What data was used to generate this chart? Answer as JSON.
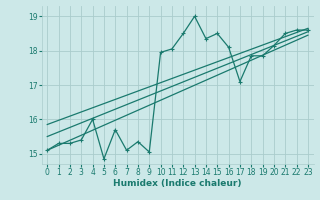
{
  "xlabel": "Humidex (Indice chaleur)",
  "x_data": [
    0,
    1,
    2,
    3,
    4,
    5,
    6,
    7,
    8,
    9,
    10,
    11,
    12,
    13,
    14,
    15,
    16,
    17,
    18,
    19,
    20,
    21,
    22,
    23
  ],
  "main_y": [
    15.1,
    15.3,
    15.3,
    15.4,
    16.0,
    14.85,
    15.7,
    15.1,
    15.35,
    15.05,
    17.95,
    18.05,
    18.5,
    19.0,
    18.35,
    18.5,
    18.1,
    17.1,
    17.85,
    17.85,
    18.15,
    18.5,
    18.6,
    18.6
  ],
  "trend1_y": [
    15.1,
    18.45
  ],
  "trend2_y": [
    15.5,
    18.55
  ],
  "trend3_y": [
    15.85,
    18.65
  ],
  "bg_color": "#cce8e8",
  "grid_color": "#aacccc",
  "line_color": "#1a7a6e",
  "ylim": [
    14.7,
    19.3
  ],
  "xlim": [
    -0.5,
    23.5
  ],
  "yticks": [
    15,
    16,
    17,
    18,
    19
  ],
  "xticks": [
    0,
    1,
    2,
    3,
    4,
    5,
    6,
    7,
    8,
    9,
    10,
    11,
    12,
    13,
    14,
    15,
    16,
    17,
    18,
    19,
    20,
    21,
    22,
    23
  ],
  "xlabel_fontsize": 6.5,
  "tick_fontsize": 5.5
}
